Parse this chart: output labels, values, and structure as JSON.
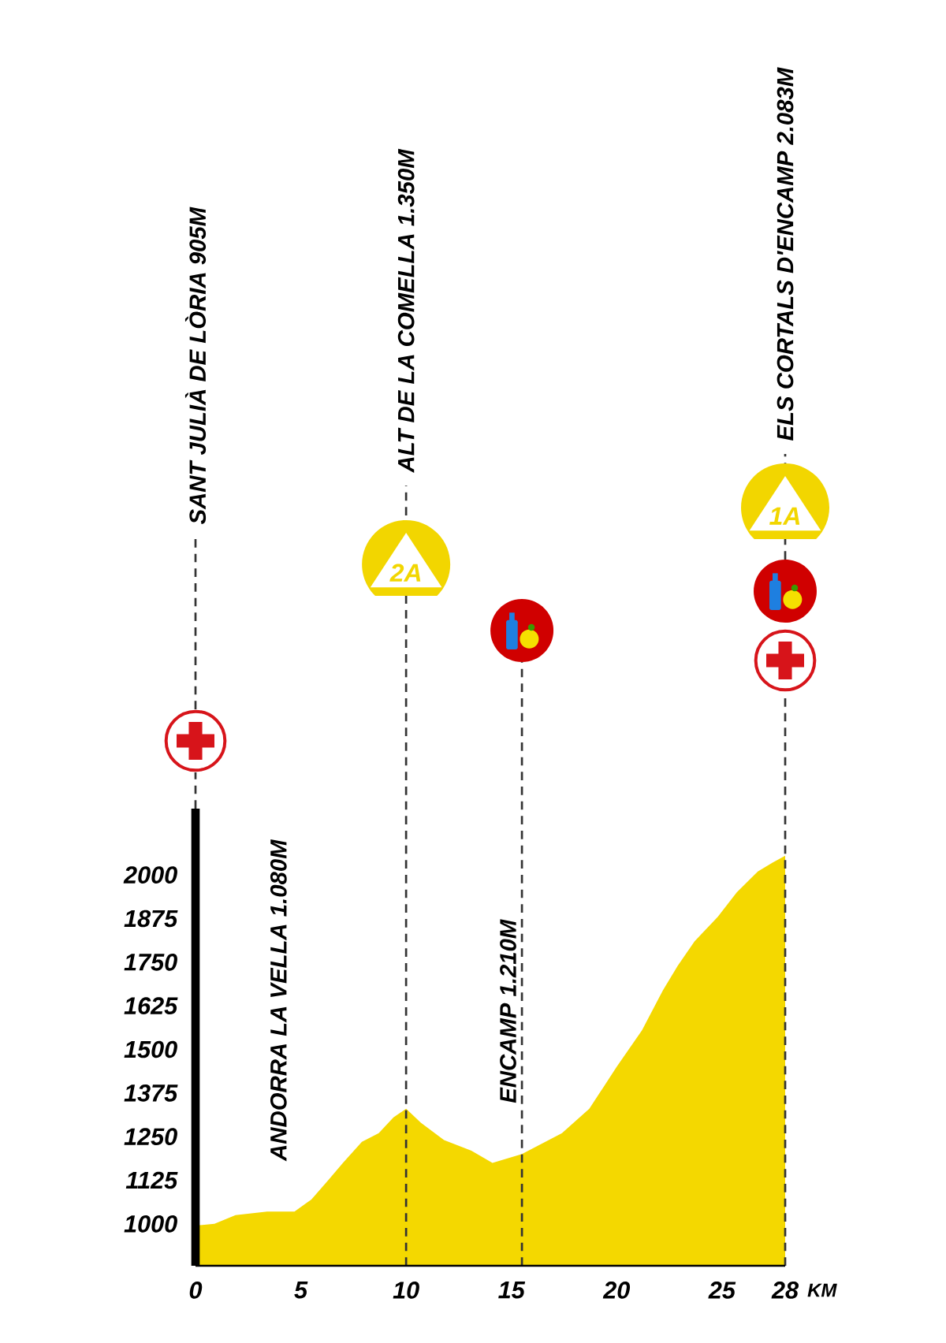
{
  "chart_data": {
    "type": "area",
    "x": [
      0,
      0.9,
      1.9,
      3.4,
      4.7,
      5.5,
      6.3,
      7,
      7.9,
      8.7,
      9.4,
      10,
      10.7,
      11.8,
      13.1,
      14.1,
      15.5,
      17.4,
      18.7,
      20,
      21.2,
      22.2,
      22.9,
      23.7,
      24.8,
      25.7,
      26.7,
      27.4,
      28
    ],
    "values": [
      995,
      1000,
      1025,
      1035,
      1035,
      1070,
      1125,
      1175,
      1235,
      1260,
      1305,
      1330,
      1290,
      1240,
      1210,
      1175,
      1200,
      1260,
      1330,
      1450,
      1555,
      1670,
      1740,
      1810,
      1880,
      1950,
      2010,
      2035,
      2055
    ],
    "color": "#f4d800",
    "xlabel": "KM",
    "xlim": [
      0,
      28
    ],
    "xticks": [
      0,
      5,
      10,
      15,
      20,
      25,
      28
    ],
    "ylim": [
      880,
      2190
    ],
    "yticks": [
      1000,
      1125,
      1250,
      1375,
      1500,
      1625,
      1750,
      1875,
      2000
    ],
    "ref_lines": [
      {
        "axis": "x",
        "value": 0,
        "label": "SANT JULIÀ DE LÒRIA 905M",
        "color": "#333333",
        "line_style": "dashed"
      },
      {
        "axis": "x",
        "value": 10,
        "label": "ALT DE LA COMELLA 1.350M",
        "color": "#333333",
        "line_style": "dashed"
      },
      {
        "axis": "x",
        "value": 15.5,
        "color": "#333333",
        "line_style": "dashed"
      },
      {
        "axis": "x",
        "value": 28,
        "label": "ELS CORTALS D'ENCAMP 2.083M",
        "color": "#333333",
        "line_style": "dashed"
      }
    ],
    "annotations": [
      {
        "text": "ANDORRA LA VELLA 1.080M",
        "x": 4.6,
        "y": 1035
      },
      {
        "text": "ENCAMP 1.210M",
        "x": 15.5,
        "y": 1200
      },
      "2A",
      "1A"
    ]
  }
}
